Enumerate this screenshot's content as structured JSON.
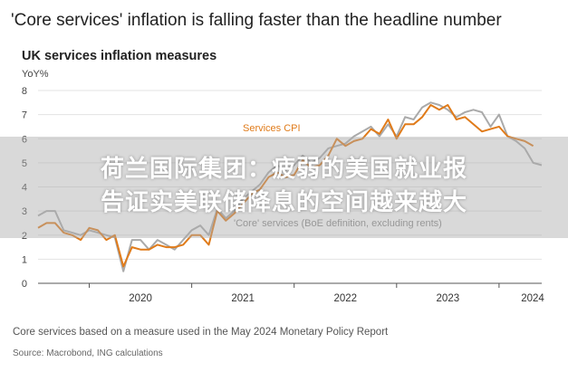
{
  "headline": "'Core services' inflation is falling faster than the headline number",
  "chart_data": {
    "type": "line",
    "title": "UK services inflation measures",
    "ylabel": "YoY%",
    "ylim": [
      0,
      8
    ],
    "yticks": [
      0,
      1,
      2,
      3,
      4,
      5,
      6,
      7,
      8
    ],
    "xticks": [
      "2020",
      "2021",
      "2022",
      "2023",
      "2024"
    ],
    "x_start": "2019-07",
    "x_end": "2024-06",
    "grid": true,
    "series": [
      {
        "name": "Services CPI",
        "color": "#e07b1a",
        "x": [
          "2019-07",
          "2019-08",
          "2019-09",
          "2019-10",
          "2019-11",
          "2019-12",
          "2020-01",
          "2020-02",
          "2020-03",
          "2020-04",
          "2020-05",
          "2020-06",
          "2020-07",
          "2020-08",
          "2020-09",
          "2020-10",
          "2020-11",
          "2020-12",
          "2021-01",
          "2021-02",
          "2021-03",
          "2021-04",
          "2021-05",
          "2021-06",
          "2021-07",
          "2021-08",
          "2021-09",
          "2021-10",
          "2021-11",
          "2021-12",
          "2022-01",
          "2022-02",
          "2022-03",
          "2022-04",
          "2022-05",
          "2022-06",
          "2022-07",
          "2022-08",
          "2022-09",
          "2022-10",
          "2022-11",
          "2022-12",
          "2023-01",
          "2023-02",
          "2023-03",
          "2023-04",
          "2023-05",
          "2023-06",
          "2023-07",
          "2023-08",
          "2023-09",
          "2023-10",
          "2023-11",
          "2023-12",
          "2024-01",
          "2024-02",
          "2024-03",
          "2024-04",
          "2024-05"
        ],
        "values": [
          2.3,
          2.5,
          2.5,
          2.1,
          2.0,
          1.8,
          2.3,
          2.2,
          1.8,
          2.0,
          0.7,
          1.5,
          1.4,
          1.4,
          1.6,
          1.5,
          1.5,
          1.6,
          2.0,
          2.0,
          1.6,
          3.0,
          2.6,
          2.9,
          3.3,
          3.7,
          3.9,
          4.4,
          4.6,
          4.4,
          4.5,
          5.1,
          4.8,
          4.9,
          5.3,
          6.0,
          5.7,
          5.9,
          6.0,
          6.4,
          6.2,
          6.8,
          6.0,
          6.6,
          6.6,
          6.9,
          7.4,
          7.2,
          7.4,
          6.8,
          6.9,
          6.6,
          6.3,
          6.4,
          6.5,
          6.1,
          6.0,
          5.9,
          5.7
        ]
      },
      {
        "name": "'Core' services (BoE definition, excluding rents)",
        "color": "#aaaaaa",
        "x": [
          "2019-07",
          "2019-08",
          "2019-09",
          "2019-10",
          "2019-11",
          "2019-12",
          "2020-01",
          "2020-02",
          "2020-03",
          "2020-04",
          "2020-05",
          "2020-06",
          "2020-07",
          "2020-08",
          "2020-09",
          "2020-10",
          "2020-11",
          "2020-12",
          "2021-01",
          "2021-02",
          "2021-03",
          "2021-04",
          "2021-05",
          "2021-06",
          "2021-07",
          "2021-08",
          "2021-09",
          "2021-10",
          "2021-11",
          "2021-12",
          "2022-01",
          "2022-02",
          "2022-03",
          "2022-04",
          "2022-05",
          "2022-06",
          "2022-07",
          "2022-08",
          "2022-09",
          "2022-10",
          "2022-11",
          "2022-12",
          "2023-01",
          "2023-02",
          "2023-03",
          "2023-04",
          "2023-05",
          "2023-06",
          "2023-07",
          "2023-08",
          "2023-09",
          "2023-10",
          "2023-11",
          "2023-12",
          "2024-01",
          "2024-02",
          "2024-03",
          "2024-04",
          "2024-05",
          "2024-06"
        ],
        "values": [
          2.8,
          3.0,
          3.0,
          2.2,
          2.1,
          2.0,
          2.2,
          2.1,
          2.0,
          1.9,
          0.5,
          1.8,
          1.8,
          1.4,
          1.8,
          1.6,
          1.4,
          1.8,
          2.2,
          2.4,
          2.0,
          3.1,
          2.7,
          3.0,
          3.5,
          3.8,
          4.1,
          4.6,
          4.9,
          4.7,
          4.9,
          5.3,
          5.0,
          5.2,
          5.6,
          5.7,
          5.8,
          6.1,
          6.3,
          6.5,
          6.1,
          6.6,
          6.1,
          6.9,
          6.8,
          7.3,
          7.5,
          7.4,
          7.2,
          6.9,
          7.1,
          7.2,
          7.1,
          6.5,
          7.0,
          6.1,
          5.9,
          5.6,
          5.0,
          4.9
        ]
      }
    ],
    "annotations": [
      "Services CPI",
      "'Core' services (BoE definition, excluding rents)"
    ]
  },
  "note": "Core services based on a measure used in the May 2024 Monetary Policy Report",
  "source": "Source: Macrobond, ING calculations",
  "overlay": {
    "line1": "荷兰国际集团：疲弱的美国就业报",
    "line2": "告证实美联储降息的空间越来越大"
  }
}
